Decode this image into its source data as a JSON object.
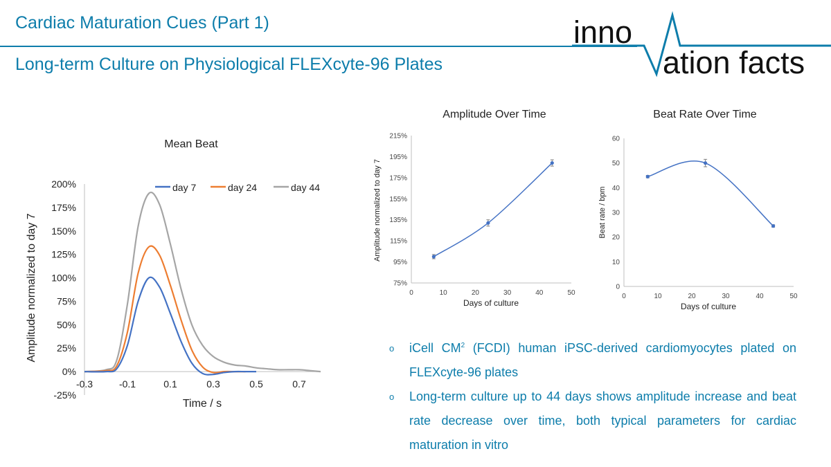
{
  "header": {
    "title": "Cardiac Maturation Cues (Part 1)",
    "subtitle": "Long-term Culture on Physiological FLEXcyte-96 Plates"
  },
  "logo": {
    "word1": "inno",
    "word2": "ation facts"
  },
  "colors": {
    "accent": "#0d7dab",
    "day7": "#4472c4",
    "day24": "#ed7d31",
    "day44": "#a5a5a5",
    "trend": "#4472c4"
  },
  "chart_data": [
    {
      "type": "line",
      "title": "Mean Beat",
      "xlabel": "Time / s",
      "ylabel": "Amplitude normalized to day 7",
      "xlim": [
        -0.3,
        0.8
      ],
      "ylim": [
        -0.25,
        2.0
      ],
      "x_ticks": [
        "-0.3",
        "-0.1",
        "0.1",
        "0.3",
        "0.5",
        "0.7"
      ],
      "y_ticks": [
        "-25%",
        "0%",
        "25%",
        "50%",
        "75%",
        "100%",
        "125%",
        "150%",
        "175%",
        "200%"
      ],
      "legend": [
        "day 7",
        "day 24",
        "day 44"
      ],
      "legend_position": "top-right",
      "series": [
        {
          "name": "day 7",
          "x": [
            -0.3,
            -0.2,
            -0.15,
            -0.1,
            -0.05,
            0,
            0.05,
            0.1,
            0.15,
            0.2,
            0.25,
            0.3,
            0.35,
            0.4,
            0.45,
            0.5
          ],
          "y": [
            0.0,
            0.0,
            0.03,
            0.28,
            0.75,
            1.0,
            0.9,
            0.62,
            0.32,
            0.09,
            -0.02,
            -0.03,
            -0.01,
            0.0,
            0.0,
            0.0
          ]
        },
        {
          "name": "day 24",
          "x": [
            -0.3,
            -0.2,
            -0.15,
            -0.1,
            -0.05,
            0,
            0.05,
            0.1,
            0.15,
            0.2,
            0.25,
            0.3,
            0.35,
            0.4,
            0.45
          ],
          "y": [
            0.0,
            0.01,
            0.06,
            0.42,
            1.05,
            1.33,
            1.24,
            0.92,
            0.55,
            0.23,
            0.05,
            -0.01,
            0.0,
            0.0,
            0.0
          ]
        },
        {
          "name": "day 44",
          "x": [
            -0.3,
            -0.2,
            -0.15,
            -0.1,
            -0.05,
            0,
            0.05,
            0.1,
            0.15,
            0.2,
            0.25,
            0.3,
            0.35,
            0.4,
            0.45,
            0.5,
            0.55,
            0.6,
            0.65,
            0.7,
            0.75,
            0.8
          ],
          "y": [
            0.0,
            0.02,
            0.12,
            0.72,
            1.55,
            1.9,
            1.78,
            1.36,
            0.88,
            0.5,
            0.28,
            0.16,
            0.1,
            0.07,
            0.06,
            0.04,
            0.03,
            0.02,
            0.02,
            0.02,
            0.01,
            0.0
          ]
        }
      ]
    },
    {
      "type": "line",
      "title": "Amplitude Over Time",
      "xlabel": "Days of culture",
      "ylabel": "Amplitude normalized to day 7",
      "xlim": [
        0,
        50
      ],
      "ylim": [
        75,
        215
      ],
      "x_ticks": [
        "0",
        "10",
        "20",
        "30",
        "40",
        "50"
      ],
      "y_ticks": [
        "75%",
        "95%",
        "115%",
        "135%",
        "155%",
        "175%",
        "195%",
        "215%"
      ],
      "x": [
        7,
        24,
        44
      ],
      "y": [
        100,
        132,
        189
      ],
      "error": [
        2,
        3,
        3
      ]
    },
    {
      "type": "line",
      "title": "Beat Rate Over Time",
      "xlabel": "Days of culture",
      "ylabel": "Beat rate / bpm",
      "xlim": [
        0,
        50
      ],
      "ylim": [
        0,
        60
      ],
      "x_ticks": [
        "0",
        "10",
        "20",
        "30",
        "40",
        "50"
      ],
      "y_ticks": [
        "0",
        "10",
        "20",
        "30",
        "40",
        "50",
        "60"
      ],
      "x": [
        7,
        24,
        44
      ],
      "y": [
        44.5,
        50,
        24.5
      ],
      "error": [
        0.5,
        1.5,
        0.5
      ]
    }
  ],
  "bullets": [
    {
      "pre": "iCell CM",
      "sup": "2",
      "post": " (FCDI) human iPSC-derived cardiomyocytes plated on FLEXcyte-96 plates"
    },
    {
      "text": "Long-term culture up to 44 days shows amplitude increase and beat rate decrease over time, both typical parameters for cardiac maturation in vitro"
    }
  ],
  "bullet_marker": "o"
}
